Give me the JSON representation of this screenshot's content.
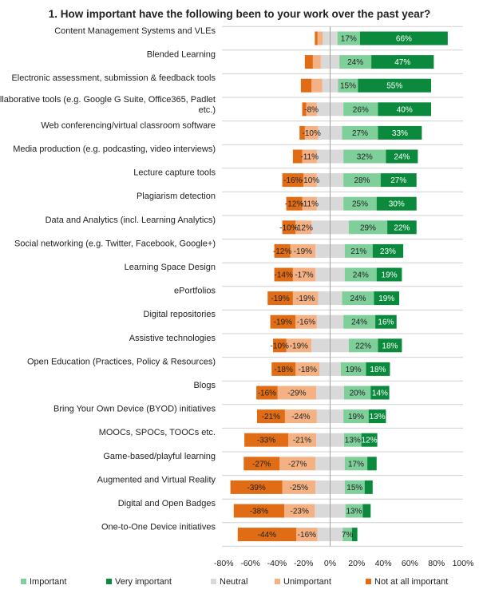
{
  "chart_data": {
    "type": "bar",
    "orientation": "horizontal",
    "stacked": "diverging",
    "title": "1. How important have the following been to your work over the past year?",
    "xlim": [
      -80,
      100
    ],
    "x_ticks": [
      "-80%",
      "-60%",
      "-40%",
      "-20%",
      "0%",
      "20%",
      "40%",
      "60%",
      "80%",
      "100%"
    ],
    "legend_position": "bottom",
    "grid": "horizontal-separators",
    "categories": [
      [
        "Content Management Systems and VLEs"
      ],
      [
        "Blended Learning"
      ],
      [
        "Electronic assessment, submission & feedback tools"
      ],
      [
        "Collaborative tools (e.g. Google G Suite, Office365, Padlet",
        "etc.)"
      ],
      [
        "Web conferencing/virtual classroom software"
      ],
      [
        "Media production (e.g. podcasting, video interviews)"
      ],
      [
        "Lecture capture tools"
      ],
      [
        "Plagiarism detection"
      ],
      [
        "Data and Analytics (incl. Learning Analytics)"
      ],
      [
        "Social networking (e.g. Twitter, Facebook, Google+)"
      ],
      [
        "Learning Space Design"
      ],
      [
        "ePortfolios"
      ],
      [
        "Digital repositories"
      ],
      [
        "Assistive technologies"
      ],
      [
        "Open Education (Practices, Policy & Resources)"
      ],
      [
        "Blogs"
      ],
      [
        "Bring Your Own Device (BYOD) initiatives"
      ],
      [
        "MOOCs, SPOCs, TOOCs etc."
      ],
      [
        "Game-based/playful learning"
      ],
      [
        "Augmented and Virtual Reality"
      ],
      [
        "Digital and Open Badges"
      ],
      [
        "One-to-One Device initiatives"
      ]
    ],
    "series": [
      {
        "name": "Important",
        "color": "#7fcf9a",
        "side": "positive",
        "values": [
          17,
          24,
          15,
          26,
          27,
          32,
          28,
          25,
          29,
          21,
          24,
          24,
          24,
          22,
          19,
          20,
          19,
          13,
          17,
          15,
          13,
          7
        ],
        "labels": [
          "17%",
          "24%",
          "15%",
          "26%",
          "27%",
          "32%",
          "28%",
          "25%",
          "29%",
          "21%",
          "24%",
          "24%",
          "24%",
          "22%",
          "19%",
          "20%",
          "19%",
          "13%",
          "17%",
          "15%",
          "13%",
          "7%"
        ]
      },
      {
        "name": "Very important",
        "color": "#0b8a3e",
        "side": "positive",
        "values": [
          66,
          47,
          55,
          40,
          33,
          24,
          27,
          30,
          22,
          23,
          19,
          19,
          16,
          18,
          18,
          14,
          13,
          12,
          7,
          6,
          6,
          4
        ],
        "labels": [
          "66%",
          "47%",
          "55%",
          "40%",
          "33%",
          "24%",
          "27%",
          "30%",
          "22%",
          "23%",
          "19%",
          "19%",
          "16%",
          "18%",
          "18%",
          "14%",
          "13%",
          "12%",
          "",
          "",
          "",
          ""
        ]
      },
      {
        "name": "Neutral",
        "color": "#d9d9d9",
        "side": "split",
        "values": [
          11,
          14,
          12,
          20,
          18,
          20,
          20,
          20,
          28,
          22,
          22,
          18,
          20,
          28,
          16,
          21,
          20,
          21,
          22,
          22,
          23,
          19
        ],
        "labels": []
      },
      {
        "name": "Unimportant",
        "color": "#f4b183",
        "side": "negative",
        "values": [
          4,
          6,
          8,
          8,
          10,
          11,
          10,
          11,
          12,
          19,
          17,
          19,
          16,
          19,
          18,
          29,
          24,
          21,
          27,
          25,
          23,
          16
        ],
        "labels": [
          "",
          "",
          "",
          "-8%",
          "-10%",
          "-11%",
          "-10%",
          "-11%",
          "-12%",
          "-19%",
          "-17%",
          "-19%",
          "-16%",
          "-19%",
          "-18%",
          "-29%",
          "-24%",
          "-21%",
          "-27%",
          "-25%",
          "-23%",
          "-16%"
        ]
      },
      {
        "name": "Not at all important",
        "color": "#e06c15",
        "side": "negative",
        "values": [
          2,
          6,
          8,
          3,
          4,
          7,
          16,
          12,
          10,
          12,
          14,
          19,
          19,
          10,
          18,
          16,
          21,
          33,
          27,
          39,
          38,
          44
        ],
        "labels": [
          "",
          "",
          "",
          "",
          "",
          "",
          "-16%",
          "-12%",
          "-10%",
          "-12%",
          "-14%",
          "-19%",
          "-19%",
          "-10%",
          "-18%",
          "-16%",
          "-21%",
          "-33%",
          "-27%",
          "-39%",
          "-38%",
          "-44%"
        ]
      }
    ]
  }
}
